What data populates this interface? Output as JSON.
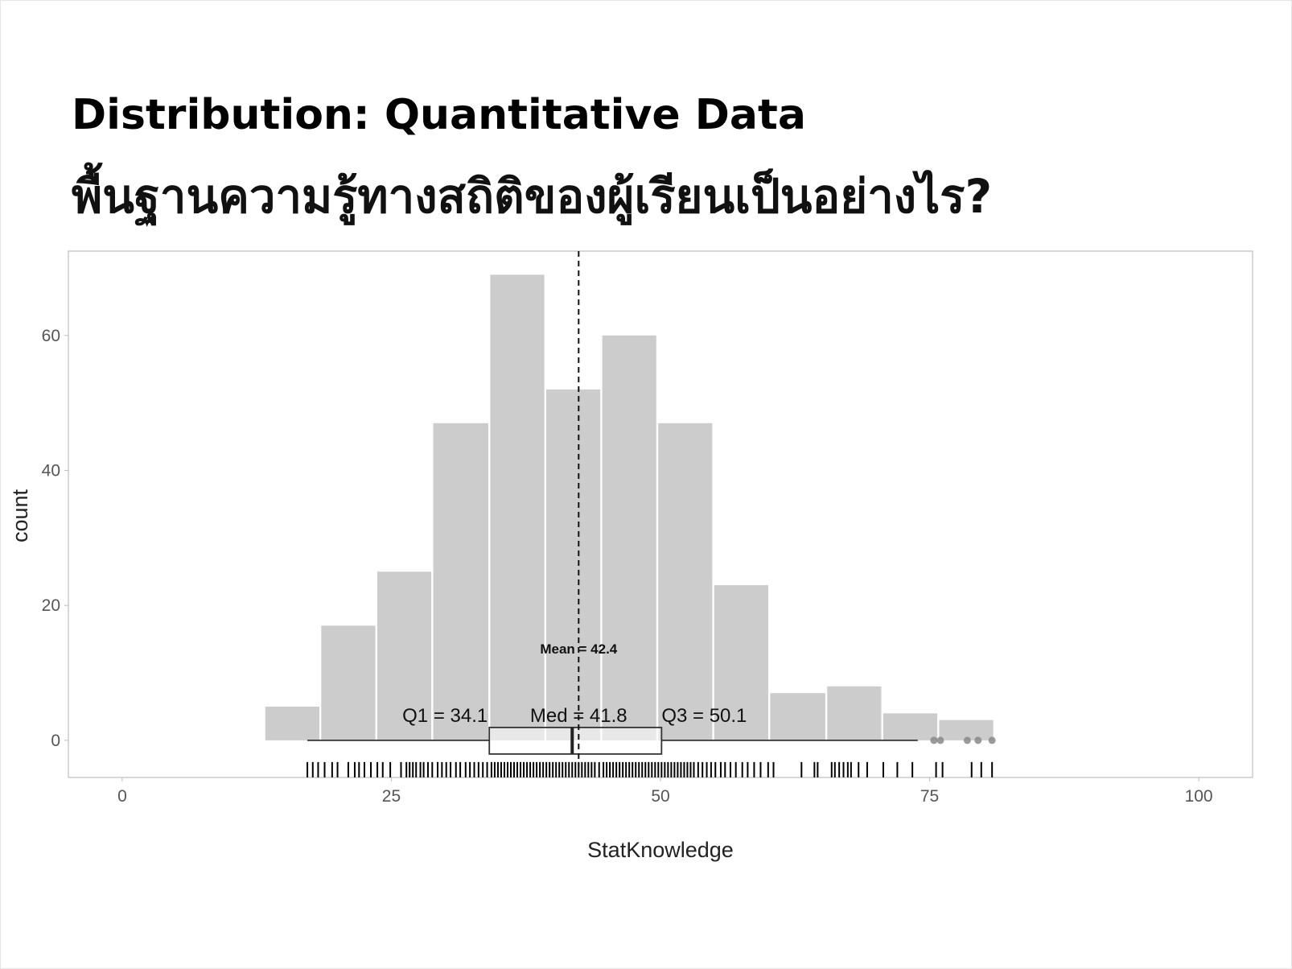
{
  "slide": {
    "title": "Distribution: Quantitative Data",
    "subtitle": "พื้นฐานความรู้ทางสถิติของผู้เรียนเป็นอย่างไร?"
  },
  "chart_data": {
    "type": "histogram",
    "xlabel": "StatKnowledge",
    "ylabel": "count",
    "xlim": [
      -5,
      105
    ],
    "ylim": [
      -5.5,
      72.5
    ],
    "x_ticks": [
      0,
      25,
      50,
      75,
      100
    ],
    "y_ticks": [
      0,
      20,
      40,
      60
    ],
    "grid": false,
    "bins": [
      {
        "start": 13.2,
        "end": 18.4,
        "count": 5
      },
      {
        "start": 18.4,
        "end": 23.6,
        "count": 17
      },
      {
        "start": 23.6,
        "end": 28.8,
        "count": 25
      },
      {
        "start": 28.8,
        "end": 34.1,
        "count": 47
      },
      {
        "start": 34.1,
        "end": 39.3,
        "count": 69
      },
      {
        "start": 39.3,
        "end": 44.5,
        "count": 52
      },
      {
        "start": 44.5,
        "end": 49.7,
        "count": 60
      },
      {
        "start": 49.7,
        "end": 54.9,
        "count": 47
      },
      {
        "start": 54.9,
        "end": 60.1,
        "count": 23
      },
      {
        "start": 60.1,
        "end": 65.4,
        "count": 7
      },
      {
        "start": 65.4,
        "end": 70.6,
        "count": 8
      },
      {
        "start": 70.6,
        "end": 75.8,
        "count": 4
      },
      {
        "start": 75.8,
        "end": 81.0,
        "count": 3
      }
    ],
    "mean": 42.4,
    "mean_label": "Mean = 42.4",
    "boxplot": {
      "whisker_low": 17.2,
      "q1": 34.1,
      "median": 41.8,
      "q3": 50.1,
      "whisker_high": 73.9,
      "outliers": [
        75.4,
        76.0,
        78.5,
        79.5,
        80.8
      ]
    },
    "box_labels": {
      "q1": "Q1 = 34.1",
      "median": "Med = 41.8",
      "q3": "Q3 = 50.1"
    },
    "rug": [
      17.2,
      17.7,
      18.2,
      18.8,
      19.5,
      20.0,
      21.0,
      21.6,
      22.0,
      22.5,
      23.1,
      23.7,
      24.2,
      24.9,
      25.9,
      26.4,
      26.7,
      27.0,
      27.3,
      27.7,
      28.0,
      28.4,
      28.8,
      29.3,
      29.7,
      30.1,
      30.5,
      31.0,
      31.4,
      31.9,
      32.3,
      32.7,
      33.1,
      33.5,
      33.9,
      34.3,
      34.6,
      34.9,
      35.2,
      35.5,
      35.8,
      36.1,
      36.4,
      36.7,
      37.0,
      37.3,
      37.6,
      37.9,
      38.2,
      38.5,
      38.8,
      39.1,
      39.4,
      39.7,
      40.0,
      40.3,
      40.6,
      40.9,
      41.2,
      41.5,
      41.8,
      42.1,
      42.4,
      42.7,
      43.0,
      43.3,
      43.6,
      43.9,
      44.3,
      44.7,
      45.0,
      45.3,
      45.6,
      45.9,
      46.2,
      46.5,
      46.8,
      47.1,
      47.4,
      47.7,
      48.0,
      48.3,
      48.6,
      48.9,
      49.2,
      49.5,
      49.8,
      50.1,
      50.4,
      50.7,
      51.0,
      51.3,
      51.6,
      51.9,
      52.2,
      52.5,
      52.8,
      53.1,
      53.5,
      53.9,
      54.3,
      54.7,
      55.1,
      55.6,
      56.0,
      56.5,
      57.0,
      57.6,
      58.1,
      58.7,
      59.3,
      60.0,
      60.5,
      63.1,
      64.3,
      64.6,
      65.9,
      66.2,
      66.6,
      67.0,
      67.4,
      67.7,
      68.4,
      69.2,
      70.7,
      72.0,
      73.4,
      75.6,
      76.2,
      78.9,
      79.8,
      80.8
    ]
  }
}
